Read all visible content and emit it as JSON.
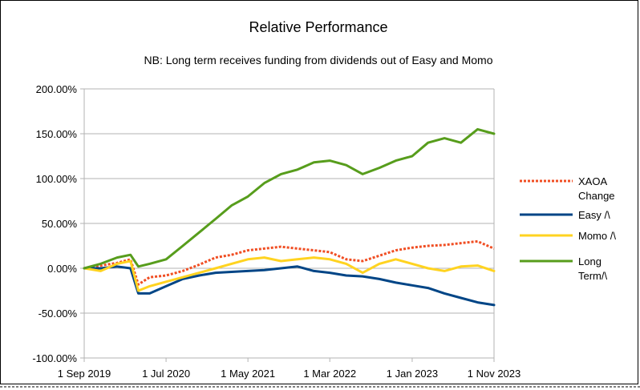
{
  "chart_data": {
    "type": "line",
    "title": "Relative Performance",
    "subtitle": "NB: Long term receives funding from dividends out of Easy and Momo",
    "xlabel": "",
    "ylabel": "",
    "ylim": [
      -100,
      200
    ],
    "y_ticks": [
      "200.00%",
      "150.00%",
      "100.00%",
      "50.00%",
      "0.00%",
      "-50.00%",
      "-100.00%"
    ],
    "y_tick_values": [
      200,
      150,
      100,
      50,
      0,
      -50,
      -100
    ],
    "x_ticks": [
      "1 Sep 2019",
      "1 Jul 2020",
      "1 May 2021",
      "1 Mar 2022",
      "1 Jan 2023",
      "1 Nov 2023"
    ],
    "x_tick_dates": [
      "2019-09-01",
      "2020-07-01",
      "2021-05-01",
      "2022-03-01",
      "2023-01-01",
      "2023-11-01"
    ],
    "xlim": [
      "2019-09-01",
      "2023-11-01"
    ],
    "grid": "horizontal",
    "legend_position": "right",
    "series": [
      {
        "name": "XAOA Change",
        "legend_lines": [
          "XAOA",
          "Change"
        ],
        "color": "#f04e23",
        "style": "dotted",
        "x": [
          "2019-09-01",
          "2019-11-01",
          "2020-01-01",
          "2020-02-20",
          "2020-03-20",
          "2020-05-01",
          "2020-07-01",
          "2020-09-01",
          "2020-11-01",
          "2021-01-01",
          "2021-03-01",
          "2021-05-01",
          "2021-07-01",
          "2021-09-01",
          "2021-11-01",
          "2022-01-01",
          "2022-03-01",
          "2022-05-01",
          "2022-07-01",
          "2022-09-01",
          "2022-11-01",
          "2023-01-01",
          "2023-03-01",
          "2023-05-01",
          "2023-07-01",
          "2023-09-01",
          "2023-11-01"
        ],
        "y": [
          0,
          3,
          6,
          10,
          -18,
          -10,
          -8,
          -3,
          4,
          12,
          15,
          20,
          22,
          24,
          22,
          20,
          18,
          10,
          8,
          14,
          20,
          23,
          25,
          26,
          28,
          30,
          22
        ]
      },
      {
        "name": "Easy /\\",
        "legend_lines": [
          "Easy /\\"
        ],
        "color": "#004586",
        "style": "solid",
        "x": [
          "2019-09-01",
          "2019-11-01",
          "2020-01-01",
          "2020-02-20",
          "2020-03-20",
          "2020-05-01",
          "2020-07-01",
          "2020-09-01",
          "2020-11-01",
          "2021-01-01",
          "2021-03-01",
          "2021-05-01",
          "2021-07-01",
          "2021-09-01",
          "2021-11-01",
          "2022-01-01",
          "2022-03-01",
          "2022-05-01",
          "2022-07-01",
          "2022-09-01",
          "2022-11-01",
          "2023-01-01",
          "2023-03-01",
          "2023-05-01",
          "2023-07-01",
          "2023-09-01",
          "2023-11-01"
        ],
        "y": [
          0,
          0,
          2,
          0,
          -28,
          -28,
          -20,
          -12,
          -8,
          -5,
          -4,
          -3,
          -2,
          0,
          2,
          -3,
          -5,
          -8,
          -9,
          -12,
          -16,
          -19,
          -22,
          -28,
          -33,
          -38,
          -41
        ]
      },
      {
        "name": "Momo /\\",
        "legend_lines": [
          "Momo /\\"
        ],
        "color": "#ffd320",
        "style": "solid",
        "x": [
          "2019-09-01",
          "2019-11-01",
          "2020-01-01",
          "2020-02-20",
          "2020-03-20",
          "2020-05-01",
          "2020-07-01",
          "2020-09-01",
          "2020-11-01",
          "2021-01-01",
          "2021-03-01",
          "2021-05-01",
          "2021-07-01",
          "2021-09-01",
          "2021-11-01",
          "2022-01-01",
          "2022-03-01",
          "2022-05-01",
          "2022-07-01",
          "2022-09-01",
          "2022-11-01",
          "2023-01-01",
          "2023-03-01",
          "2023-05-01",
          "2023-07-01",
          "2023-09-01",
          "2023-11-01"
        ],
        "y": [
          0,
          -3,
          5,
          8,
          -25,
          -20,
          -15,
          -10,
          -5,
          0,
          5,
          10,
          12,
          8,
          10,
          12,
          10,
          5,
          -5,
          5,
          10,
          5,
          0,
          -3,
          2,
          3,
          -3
        ]
      },
      {
        "name": "Long Term/\\",
        "legend_lines": [
          "Long",
          "Term/\\"
        ],
        "color": "#579d1c",
        "style": "solid",
        "x": [
          "2019-09-01",
          "2019-11-01",
          "2020-01-01",
          "2020-02-20",
          "2020-03-20",
          "2020-05-01",
          "2020-07-01",
          "2020-09-01",
          "2020-11-01",
          "2021-01-01",
          "2021-03-01",
          "2021-05-01",
          "2021-07-01",
          "2021-09-01",
          "2021-11-01",
          "2022-01-01",
          "2022-03-01",
          "2022-05-01",
          "2022-07-01",
          "2022-09-01",
          "2022-11-01",
          "2023-01-01",
          "2023-03-01",
          "2023-05-01",
          "2023-07-01",
          "2023-09-01",
          "2023-11-01"
        ],
        "y": [
          0,
          5,
          12,
          15,
          2,
          5,
          10,
          25,
          40,
          55,
          70,
          80,
          95,
          105,
          110,
          118,
          120,
          115,
          105,
          112,
          120,
          125,
          140,
          145,
          140,
          155,
          150
        ]
      }
    ]
  }
}
